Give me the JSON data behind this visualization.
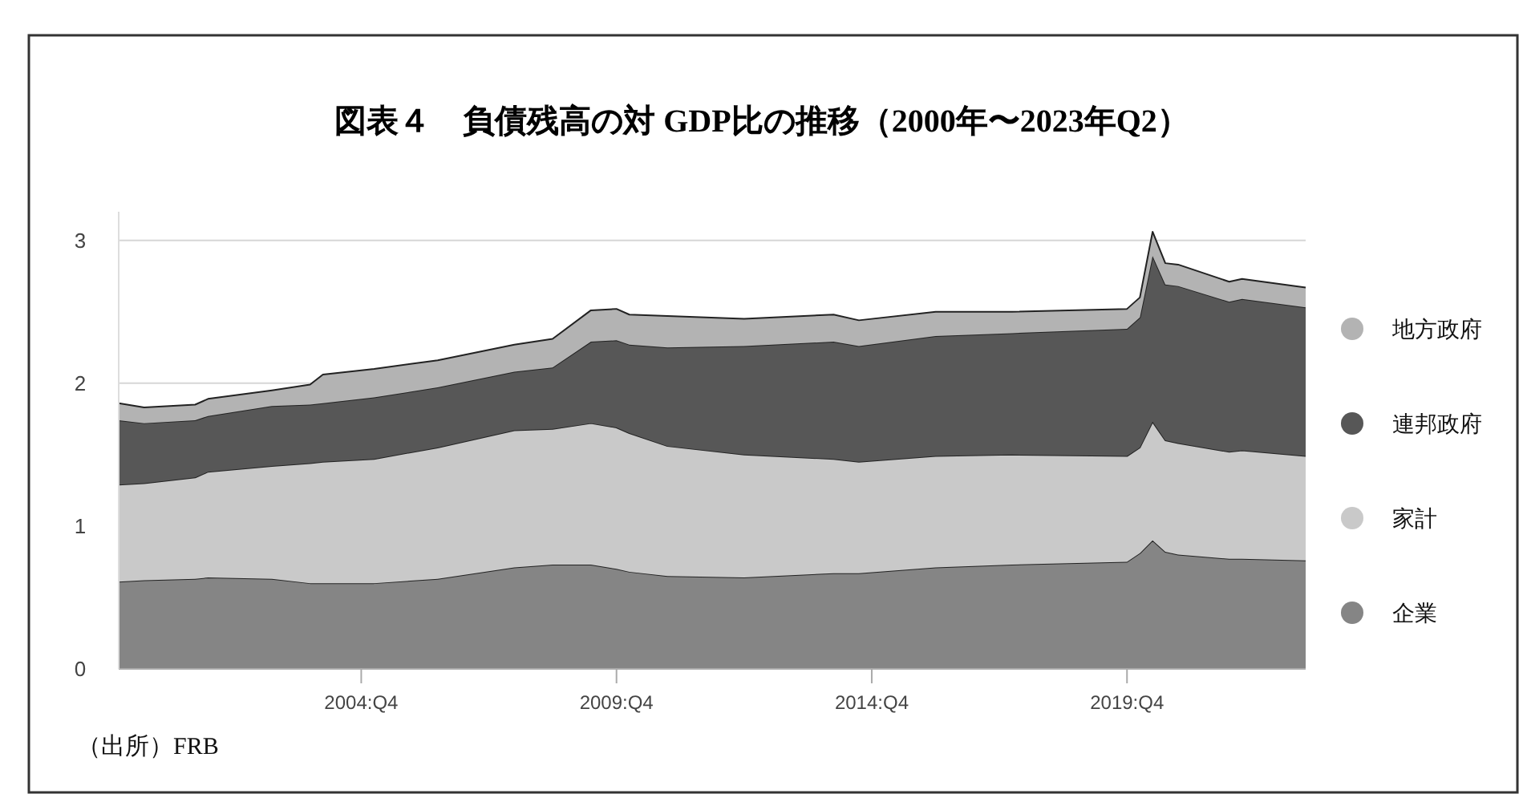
{
  "chart_data": {
    "type": "area",
    "stacked": true,
    "title": "図表４　負債残高の対 GDP比の推移（2000年〜2023年Q2）",
    "x": [
      "2000-01",
      "2000-07",
      "2001-07",
      "2001-10",
      "2003-01",
      "2003-10",
      "2004-01",
      "2005-01",
      "2006-04",
      "2007-10",
      "2008-07",
      "2009-04",
      "2009-10",
      "2010-01",
      "2010-10",
      "2012-04",
      "2014-01",
      "2014-07",
      "2016-01",
      "2017-07",
      "2019-10",
      "2020-01",
      "2020-04",
      "2020-07",
      "2020-10",
      "2021-10",
      "2022-01",
      "2023-04"
    ],
    "series": [
      {
        "name": "企業",
        "color": "#858585",
        "values": [
          0.61,
          0.62,
          0.63,
          0.64,
          0.63,
          0.6,
          0.6,
          0.6,
          0.63,
          0.71,
          0.73,
          0.73,
          0.7,
          0.68,
          0.65,
          0.64,
          0.67,
          0.67,
          0.71,
          0.73,
          0.75,
          0.81,
          0.9,
          0.82,
          0.8,
          0.77,
          0.77,
          0.76
        ]
      },
      {
        "name": "家計",
        "color": "#c9c9c9",
        "values": [
          0.68,
          0.68,
          0.71,
          0.74,
          0.79,
          0.84,
          0.85,
          0.87,
          0.92,
          0.96,
          0.95,
          0.99,
          0.99,
          0.97,
          0.91,
          0.86,
          0.8,
          0.78,
          0.78,
          0.77,
          0.74,
          0.74,
          0.83,
          0.78,
          0.78,
          0.75,
          0.76,
          0.73
        ]
      },
      {
        "name": "連邦政府",
        "color": "#575757",
        "values": [
          0.45,
          0.42,
          0.4,
          0.39,
          0.42,
          0.41,
          0.41,
          0.43,
          0.42,
          0.41,
          0.43,
          0.57,
          0.61,
          0.62,
          0.69,
          0.76,
          0.82,
          0.81,
          0.84,
          0.85,
          0.89,
          0.91,
          1.16,
          1.09,
          1.1,
          1.05,
          1.06,
          1.04
        ]
      },
      {
        "name": "地方政府",
        "color": "#b3b3b3",
        "values": [
          0.12,
          0.11,
          0.11,
          0.12,
          0.11,
          0.14,
          0.2,
          0.2,
          0.19,
          0.19,
          0.2,
          0.22,
          0.22,
          0.21,
          0.22,
          0.19,
          0.19,
          0.18,
          0.17,
          0.15,
          0.14,
          0.14,
          0.17,
          0.15,
          0.15,
          0.14,
          0.14,
          0.14
        ]
      }
    ],
    "xlim": [
      "2000-01",
      "2023-04"
    ],
    "xticks": [
      {
        "value": "2004-10",
        "label": "2004:Q4"
      },
      {
        "value": "2009-10",
        "label": "2009:Q4"
      },
      {
        "value": "2014-10",
        "label": "2014:Q4"
      },
      {
        "value": "2019-10",
        "label": "2019:Q4"
      }
    ],
    "ylim": [
      0,
      3.2
    ],
    "yticks": [
      0,
      1,
      2,
      3
    ],
    "grid": "y",
    "legend": "right",
    "annotations": [
      "（出所）FRB"
    ]
  }
}
